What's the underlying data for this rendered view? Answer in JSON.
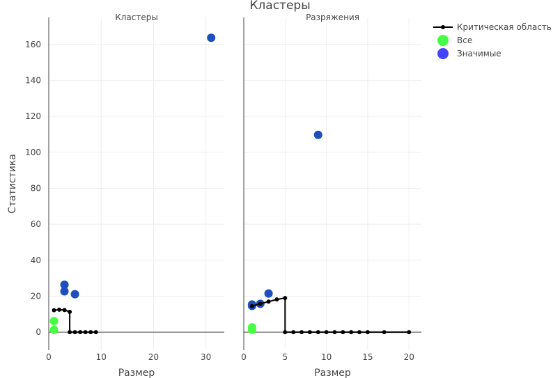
{
  "chart_data": {
    "type": "scatter",
    "title": "Кластеры",
    "ylabel": "Статистика",
    "ylim": [
      -10,
      175
    ],
    "yticks": [
      0,
      20,
      40,
      60,
      80,
      100,
      120,
      140,
      160
    ],
    "legend_position": "top-right",
    "legend": [
      {
        "name": "Критическая область",
        "kind": "line",
        "color": "#000000"
      },
      {
        "name": "Все",
        "kind": "marker",
        "color": "#44ff44"
      },
      {
        "name": "Значимые",
        "kind": "marker",
        "color": "#4444ff"
      }
    ],
    "panels": [
      {
        "title": "Кластеры",
        "xlabel": "Размер",
        "xlim": [
          0,
          33.5
        ],
        "xticks": [
          0,
          10,
          20,
          30
        ],
        "critical_region": {
          "x": [
            1,
            2,
            3,
            4,
            4,
            5,
            6,
            7,
            8,
            9
          ],
          "y": [
            12.2,
            12.5,
            12.3,
            11.3,
            0,
            0,
            0,
            0,
            0,
            0
          ]
        },
        "all": {
          "x": [
            1,
            1,
            3,
            3,
            5,
            31
          ],
          "y": [
            1.3,
            6.2,
            22.7,
            26.4,
            21.1,
            163.7
          ]
        },
        "significant": {
          "x": [
            3,
            3,
            5,
            31
          ],
          "y": [
            22.7,
            26.4,
            21.1,
            163.7
          ]
        }
      },
      {
        "title": "Разряжения",
        "xlabel": "Размер",
        "xlim": [
          0,
          21.5
        ],
        "xticks": [
          0,
          5,
          10,
          15,
          20
        ],
        "critical_region": {
          "x": [
            1,
            2,
            3,
            4,
            5,
            5,
            6,
            7,
            8,
            9,
            10,
            11,
            12,
            13,
            14,
            15,
            17,
            20
          ],
          "y": [
            14.5,
            15.8,
            17.0,
            18.2,
            19.0,
            0,
            0,
            0,
            0,
            0,
            0,
            0,
            0,
            0,
            0,
            0,
            0,
            0
          ]
        },
        "all": {
          "x": [
            1,
            1,
            1,
            1,
            2,
            3,
            9
          ],
          "y": [
            1.3,
            2.7,
            14.6,
            15.4,
            15.8,
            21.5,
            109.7
          ]
        },
        "significant": {
          "x": [
            1,
            1,
            2,
            3,
            9
          ],
          "y": [
            14.6,
            15.4,
            15.8,
            21.5,
            109.7
          ]
        }
      }
    ]
  },
  "colors": {
    "all_marker": "#44ff44",
    "significant_marker": "#4444ff",
    "overlap_marker": "#1f4fbf",
    "critical_line": "#000000"
  }
}
